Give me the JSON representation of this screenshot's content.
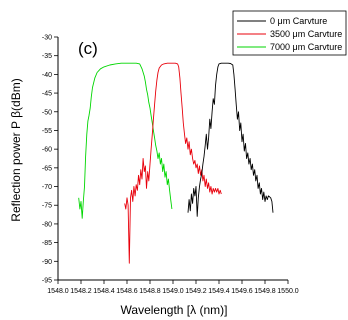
{
  "chart_data": {
    "type": "line",
    "panel_label": "(c)",
    "xlabel": "Wavelength [λ (nm)]",
    "ylabel": "Reflection power P β(dBm)",
    "xlim": [
      1548.0,
      1550.0
    ],
    "ylim": [
      -95,
      -30
    ],
    "x_ticks": [
      "1548.0",
      "1548.2",
      "1548.4",
      "1548.6",
      "1548.8",
      "1549.0",
      "1549.2",
      "1549.4",
      "1549.6",
      "1549.8",
      "1550.0"
    ],
    "y_ticks": [
      "-30",
      "-35",
      "-40",
      "-45",
      "-50",
      "-55",
      "-60",
      "-65",
      "-70",
      "-75",
      "-80",
      "-85",
      "-90",
      "-95"
    ],
    "grid": false,
    "legend_position": "top-right",
    "series": [
      {
        "name": "0 μm Carvture",
        "color": "#000000",
        "points": [
          [
            1549.13,
            -77.0
          ],
          [
            1549.14,
            -73.5
          ],
          [
            1549.15,
            -76.5
          ],
          [
            1549.16,
            -72.0
          ],
          [
            1549.17,
            -74.5
          ],
          [
            1549.18,
            -70.5
          ],
          [
            1549.19,
            -72.5
          ],
          [
            1549.2,
            -70.0
          ],
          [
            1549.21,
            -78.0
          ],
          [
            1549.22,
            -73.0
          ],
          [
            1549.23,
            -70.0
          ],
          [
            1549.24,
            -68.0
          ],
          [
            1549.25,
            -66.5
          ],
          [
            1549.26,
            -64.0
          ],
          [
            1549.27,
            -62.0
          ],
          [
            1549.28,
            -59.0
          ],
          [
            1549.29,
            -56.0
          ],
          [
            1549.3,
            -60.0
          ],
          [
            1549.31,
            -57.0
          ],
          [
            1549.32,
            -52.0
          ],
          [
            1549.33,
            -54.5
          ],
          [
            1549.34,
            -50.0
          ],
          [
            1549.35,
            -46.5
          ],
          [
            1549.36,
            -48.0
          ],
          [
            1549.37,
            -43.0
          ],
          [
            1549.38,
            -40.0
          ],
          [
            1549.39,
            -38.0
          ],
          [
            1549.4,
            -37.2
          ],
          [
            1549.42,
            -37.0
          ],
          [
            1549.44,
            -37.0
          ],
          [
            1549.46,
            -37.0
          ],
          [
            1549.48,
            -37.0
          ],
          [
            1549.5,
            -37.1
          ],
          [
            1549.52,
            -37.5
          ],
          [
            1549.53,
            -40.0
          ],
          [
            1549.54,
            -44.0
          ],
          [
            1549.55,
            -48.0
          ],
          [
            1549.56,
            -52.0
          ],
          [
            1549.57,
            -50.0
          ],
          [
            1549.58,
            -55.0
          ],
          [
            1549.59,
            -53.0
          ],
          [
            1549.6,
            -58.0
          ],
          [
            1549.61,
            -56.0
          ],
          [
            1549.62,
            -60.5
          ],
          [
            1549.63,
            -58.5
          ],
          [
            1549.64,
            -62.5
          ],
          [
            1549.65,
            -61.0
          ],
          [
            1549.66,
            -64.0
          ],
          [
            1549.67,
            -62.5
          ],
          [
            1549.68,
            -65.5
          ],
          [
            1549.69,
            -64.0
          ],
          [
            1549.7,
            -67.0
          ],
          [
            1549.71,
            -65.5
          ],
          [
            1549.72,
            -68.5
          ],
          [
            1549.73,
            -67.0
          ],
          [
            1549.74,
            -70.5
          ],
          [
            1549.75,
            -69.0
          ],
          [
            1549.76,
            -72.0
          ],
          [
            1549.77,
            -70.5
          ],
          [
            1549.78,
            -73.5
          ],
          [
            1549.79,
            -71.5
          ],
          [
            1549.8,
            -74.0
          ],
          [
            1549.81,
            -72.5
          ],
          [
            1549.82,
            -73.5
          ],
          [
            1549.83,
            -72.5
          ],
          [
            1549.85,
            -73.0
          ],
          [
            1549.86,
            -74.0
          ],
          [
            1549.87,
            -77.0
          ]
        ]
      },
      {
        "name": "3500 μm Carvture",
        "color": "#e8000b",
        "points": [
          [
            1548.58,
            -74.5
          ],
          [
            1548.59,
            -76.0
          ],
          [
            1548.6,
            -73.0
          ],
          [
            1548.61,
            -75.0
          ],
          [
            1548.62,
            -90.5
          ],
          [
            1548.63,
            -73.0
          ],
          [
            1548.64,
            -71.0
          ],
          [
            1548.65,
            -74.0
          ],
          [
            1548.66,
            -70.0
          ],
          [
            1548.67,
            -72.5
          ],
          [
            1548.68,
            -69.5
          ],
          [
            1548.69,
            -71.0
          ],
          [
            1548.7,
            -67.0
          ],
          [
            1548.71,
            -69.5
          ],
          [
            1548.72,
            -65.5
          ],
          [
            1548.73,
            -68.0
          ],
          [
            1548.74,
            -62.5
          ],
          [
            1548.75,
            -66.0
          ],
          [
            1548.76,
            -64.5
          ],
          [
            1548.77,
            -70.5
          ],
          [
            1548.78,
            -66.0
          ],
          [
            1548.79,
            -68.5
          ],
          [
            1548.8,
            -64.0
          ],
          [
            1548.81,
            -60.0
          ],
          [
            1548.82,
            -56.0
          ],
          [
            1548.83,
            -52.0
          ],
          [
            1548.84,
            -48.0
          ],
          [
            1548.85,
            -44.5
          ],
          [
            1548.86,
            -41.5
          ],
          [
            1548.87,
            -39.5
          ],
          [
            1548.88,
            -38.3
          ],
          [
            1548.9,
            -37.5
          ],
          [
            1548.92,
            -37.2
          ],
          [
            1548.95,
            -37.0
          ],
          [
            1548.98,
            -37.0
          ],
          [
            1549.0,
            -37.0
          ],
          [
            1549.02,
            -37.0
          ],
          [
            1549.04,
            -37.2
          ],
          [
            1549.05,
            -38.0
          ],
          [
            1549.06,
            -41.0
          ],
          [
            1549.07,
            -45.0
          ],
          [
            1549.08,
            -49.0
          ],
          [
            1549.09,
            -53.0
          ],
          [
            1549.1,
            -56.0
          ],
          [
            1549.11,
            -58.5
          ],
          [
            1549.12,
            -57.0
          ],
          [
            1549.13,
            -60.0
          ],
          [
            1549.14,
            -58.0
          ],
          [
            1549.15,
            -61.5
          ],
          [
            1549.16,
            -60.0
          ],
          [
            1549.17,
            -62.5
          ],
          [
            1549.18,
            -64.0
          ],
          [
            1549.19,
            -63.0
          ],
          [
            1549.2,
            -65.0
          ],
          [
            1549.21,
            -64.0
          ],
          [
            1549.22,
            -66.5
          ],
          [
            1549.23,
            -64.5
          ],
          [
            1549.24,
            -67.0
          ],
          [
            1549.25,
            -65.5
          ],
          [
            1549.26,
            -68.5
          ],
          [
            1549.27,
            -67.0
          ],
          [
            1549.28,
            -70.0
          ],
          [
            1549.29,
            -68.0
          ],
          [
            1549.3,
            -70.5
          ],
          [
            1549.31,
            -69.0
          ],
          [
            1549.32,
            -71.5
          ],
          [
            1549.33,
            -70.0
          ],
          [
            1549.34,
            -72.0
          ],
          [
            1549.35,
            -70.5
          ],
          [
            1549.36,
            -71.5
          ],
          [
            1549.37,
            -70.5
          ],
          [
            1549.38,
            -71.5
          ],
          [
            1549.39,
            -70.5
          ],
          [
            1549.4,
            -72.0
          ],
          [
            1549.41,
            -71.0
          ],
          [
            1549.42,
            -72.0
          ]
        ]
      },
      {
        "name": "7000 μm Carvture",
        "color": "#00d600",
        "points": [
          [
            1548.18,
            -73.0
          ],
          [
            1548.19,
            -76.0
          ],
          [
            1548.2,
            -74.0
          ],
          [
            1548.21,
            -78.5
          ],
          [
            1548.22,
            -74.0
          ],
          [
            1548.23,
            -70.0
          ],
          [
            1548.24,
            -62.0
          ],
          [
            1548.25,
            -56.0
          ],
          [
            1548.26,
            -52.5
          ],
          [
            1548.27,
            -51.0
          ],
          [
            1548.28,
            -49.0
          ],
          [
            1548.29,
            -46.0
          ],
          [
            1548.3,
            -43.5
          ],
          [
            1548.32,
            -41.0
          ],
          [
            1548.34,
            -39.5
          ],
          [
            1548.37,
            -38.5
          ],
          [
            1548.4,
            -38.0
          ],
          [
            1548.45,
            -37.5
          ],
          [
            1548.5,
            -37.2
          ],
          [
            1548.55,
            -37.0
          ],
          [
            1548.6,
            -37.0
          ],
          [
            1548.65,
            -37.0
          ],
          [
            1548.68,
            -37.0
          ],
          [
            1548.71,
            -37.2
          ],
          [
            1548.73,
            -38.5
          ],
          [
            1548.75,
            -40.5
          ],
          [
            1548.76,
            -42.0
          ],
          [
            1548.77,
            -44.0
          ],
          [
            1548.78,
            -45.5
          ],
          [
            1548.79,
            -47.5
          ],
          [
            1548.8,
            -49.0
          ],
          [
            1548.81,
            -51.0
          ],
          [
            1548.82,
            -53.0
          ],
          [
            1548.83,
            -55.0
          ],
          [
            1548.84,
            -57.0
          ],
          [
            1548.85,
            -59.0
          ],
          [
            1548.86,
            -60.5
          ],
          [
            1548.87,
            -62.5
          ],
          [
            1548.88,
            -61.0
          ],
          [
            1548.89,
            -64.0
          ],
          [
            1548.9,
            -62.5
          ],
          [
            1548.91,
            -66.0
          ],
          [
            1548.92,
            -64.0
          ],
          [
            1548.93,
            -67.5
          ],
          [
            1548.94,
            -66.0
          ],
          [
            1548.95,
            -69.5
          ],
          [
            1548.96,
            -68.0
          ],
          [
            1548.97,
            -71.0
          ],
          [
            1548.98,
            -73.5
          ],
          [
            1548.99,
            -76.0
          ]
        ]
      }
    ]
  }
}
